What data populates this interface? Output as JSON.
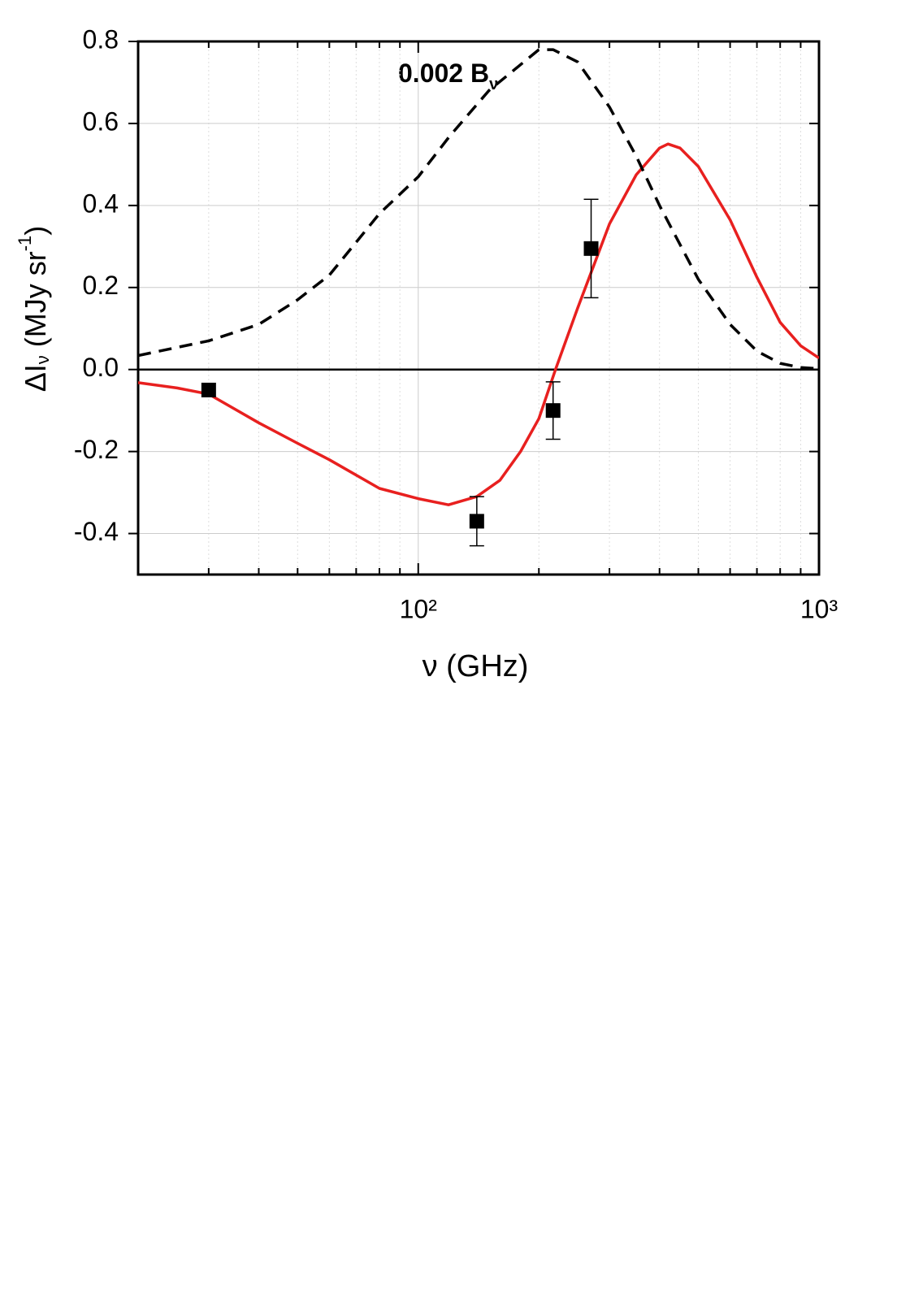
{
  "chart_data": {
    "type": "line",
    "xlabel": "ν (GHz)",
    "ylabel": [
      "ΔI",
      "ν",
      " (MJy sr",
      "-1",
      ")"
    ],
    "annotation": {
      "text": "0.002 B",
      "sub": "ν"
    },
    "xscale": "log",
    "xlim": [
      20,
      1000
    ],
    "ylim": [
      -0.5,
      0.8
    ],
    "xticks": [
      {
        "value": 100,
        "label": "10²"
      },
      {
        "value": 1000,
        "label": "10³"
      }
    ],
    "xminorticks": [
      20,
      30,
      40,
      50,
      60,
      70,
      80,
      90,
      200,
      300,
      400,
      500,
      600,
      700,
      800,
      900
    ],
    "yticks": [
      -0.4,
      -0.2,
      {
        "value": 0,
        "label": "0.0"
      },
      0.2,
      0.4,
      0.6,
      0.8
    ],
    "grid": true,
    "series": [
      {
        "type": "line",
        "color": "#e8201f",
        "dash": false,
        "x": [
          20,
          25,
          30,
          40,
          50,
          60,
          80,
          100,
          119,
          140,
          160,
          180,
          200,
          220,
          250,
          300,
          350,
          400,
          420,
          450,
          500,
          600,
          700,
          800,
          900,
          1000
        ],
        "values": [
          -0.032,
          -0.045,
          -0.06,
          -0.13,
          -0.18,
          -0.22,
          -0.29,
          -0.315,
          -0.33,
          -0.31,
          -0.27,
          -0.2,
          -0.12,
          0.0,
          0.15,
          0.355,
          0.475,
          0.54,
          0.55,
          0.54,
          0.495,
          0.365,
          0.225,
          0.115,
          0.058,
          0.028
        ]
      },
      {
        "type": "line",
        "color": "#000000",
        "dash": true,
        "x": [
          20,
          30,
          40,
          50,
          60,
          80,
          100,
          120,
          150,
          200,
          217,
          250,
          300,
          350,
          400,
          500,
          600,
          700,
          800,
          900,
          1000
        ],
        "values": [
          0.034,
          0.07,
          0.11,
          0.17,
          0.23,
          0.38,
          0.47,
          0.57,
          0.68,
          0.78,
          0.78,
          0.75,
          0.64,
          0.52,
          0.4,
          0.22,
          0.11,
          0.045,
          0.015,
          0.005,
          0.002
        ]
      },
      {
        "type": "scatter",
        "color": "#000000",
        "x": [
          30,
          140,
          217,
          270
        ],
        "values": [
          -0.05,
          -0.37,
          -0.1,
          0.295
        ],
        "errors": [
          0,
          0.06,
          0.07,
          0.12
        ]
      }
    ]
  }
}
